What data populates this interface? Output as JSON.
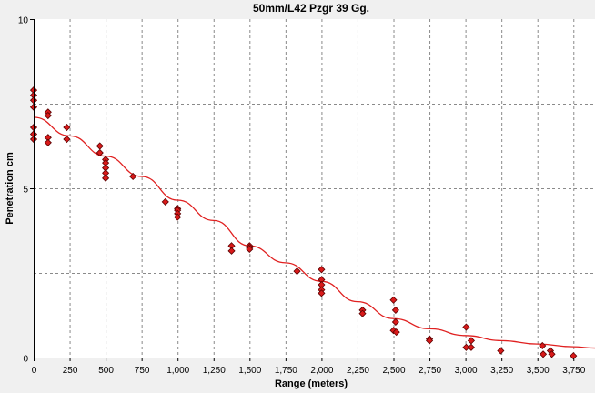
{
  "chart_data": {
    "type": "scatter",
    "title": "50mm/L42 Pzgr 39 Gg.",
    "xlabel": "Range (meters)",
    "ylabel": "Penetration cm",
    "xlim": [
      0,
      3900
    ],
    "ylim": [
      0,
      10
    ],
    "x_ticks": [
      0,
      250,
      500,
      750,
      1000,
      1250,
      1500,
      1750,
      2000,
      2250,
      2500,
      2750,
      3000,
      3250,
      3500,
      3750
    ],
    "x_tick_labels": [
      "0",
      "250",
      "500",
      "750",
      "1,000",
      "1,250",
      "1,500",
      "1,750",
      "2,000",
      "2,250",
      "2,500",
      "2,750",
      "3,000",
      "3,250",
      "3,500",
      "3,750"
    ],
    "y_major_ticks": [
      0,
      5,
      10
    ],
    "y_tick_labels": [
      "0",
      "5",
      "10"
    ],
    "y_grid_minor": [
      2.5,
      7.5
    ],
    "grid": true,
    "colors": {
      "marker_fill": "#d91a1a",
      "marker_edge": "#5a0000",
      "trend": "#e02020",
      "plot_bg": "#ffffff",
      "grid": "#8a8a8a"
    },
    "series": [
      {
        "type": "scatter",
        "points": [
          [
            0,
            7.9
          ],
          [
            0,
            7.75
          ],
          [
            0,
            7.6
          ],
          [
            0,
            7.4
          ],
          [
            0,
            6.8
          ],
          [
            0,
            6.6
          ],
          [
            0,
            6.45
          ],
          [
            100,
            7.25
          ],
          [
            100,
            7.15
          ],
          [
            100,
            6.5
          ],
          [
            100,
            6.35
          ],
          [
            230,
            6.8
          ],
          [
            230,
            6.45
          ],
          [
            460,
            6.25
          ],
          [
            460,
            6.05
          ],
          [
            500,
            5.85
          ],
          [
            500,
            5.75
          ],
          [
            500,
            5.6
          ],
          [
            500,
            5.45
          ],
          [
            500,
            5.3
          ],
          [
            690,
            5.35
          ],
          [
            915,
            4.6
          ],
          [
            1000,
            4.4
          ],
          [
            1000,
            4.35
          ],
          [
            1000,
            4.25
          ],
          [
            1000,
            4.15
          ],
          [
            1375,
            3.3
          ],
          [
            1375,
            3.15
          ],
          [
            1500,
            3.3
          ],
          [
            1500,
            3.25
          ],
          [
            1500,
            3.2
          ],
          [
            1830,
            2.55
          ],
          [
            2000,
            2.6
          ],
          [
            2000,
            2.3
          ],
          [
            2000,
            2.15
          ],
          [
            2000,
            2.0
          ],
          [
            2000,
            1.9
          ],
          [
            2285,
            1.4
          ],
          [
            2285,
            1.3
          ],
          [
            2500,
            1.7
          ],
          [
            2515,
            1.4
          ],
          [
            2515,
            1.05
          ],
          [
            2500,
            0.8
          ],
          [
            2520,
            0.75
          ],
          [
            2750,
            0.55
          ],
          [
            2750,
            0.5
          ],
          [
            3005,
            0.9
          ],
          [
            3005,
            0.3
          ],
          [
            3040,
            0.5
          ],
          [
            3040,
            0.3
          ],
          [
            3245,
            0.2
          ],
          [
            3535,
            0.35
          ],
          [
            3540,
            0.1
          ],
          [
            3590,
            0.2
          ],
          [
            3600,
            0.1
          ],
          [
            3750,
            0.05
          ]
        ]
      },
      {
        "type": "line",
        "points": [
          [
            0,
            7.1
          ],
          [
            250,
            6.55
          ],
          [
            500,
            5.95
          ],
          [
            750,
            5.35
          ],
          [
            1000,
            4.65
          ],
          [
            1250,
            4.05
          ],
          [
            1500,
            3.3
          ],
          [
            1750,
            2.8
          ],
          [
            2000,
            2.25
          ],
          [
            2250,
            1.65
          ],
          [
            2500,
            1.15
          ],
          [
            2750,
            0.85
          ],
          [
            3000,
            0.65
          ],
          [
            3250,
            0.5
          ],
          [
            3500,
            0.4
          ],
          [
            3750,
            0.32
          ],
          [
            3900,
            0.28
          ]
        ]
      }
    ]
  }
}
